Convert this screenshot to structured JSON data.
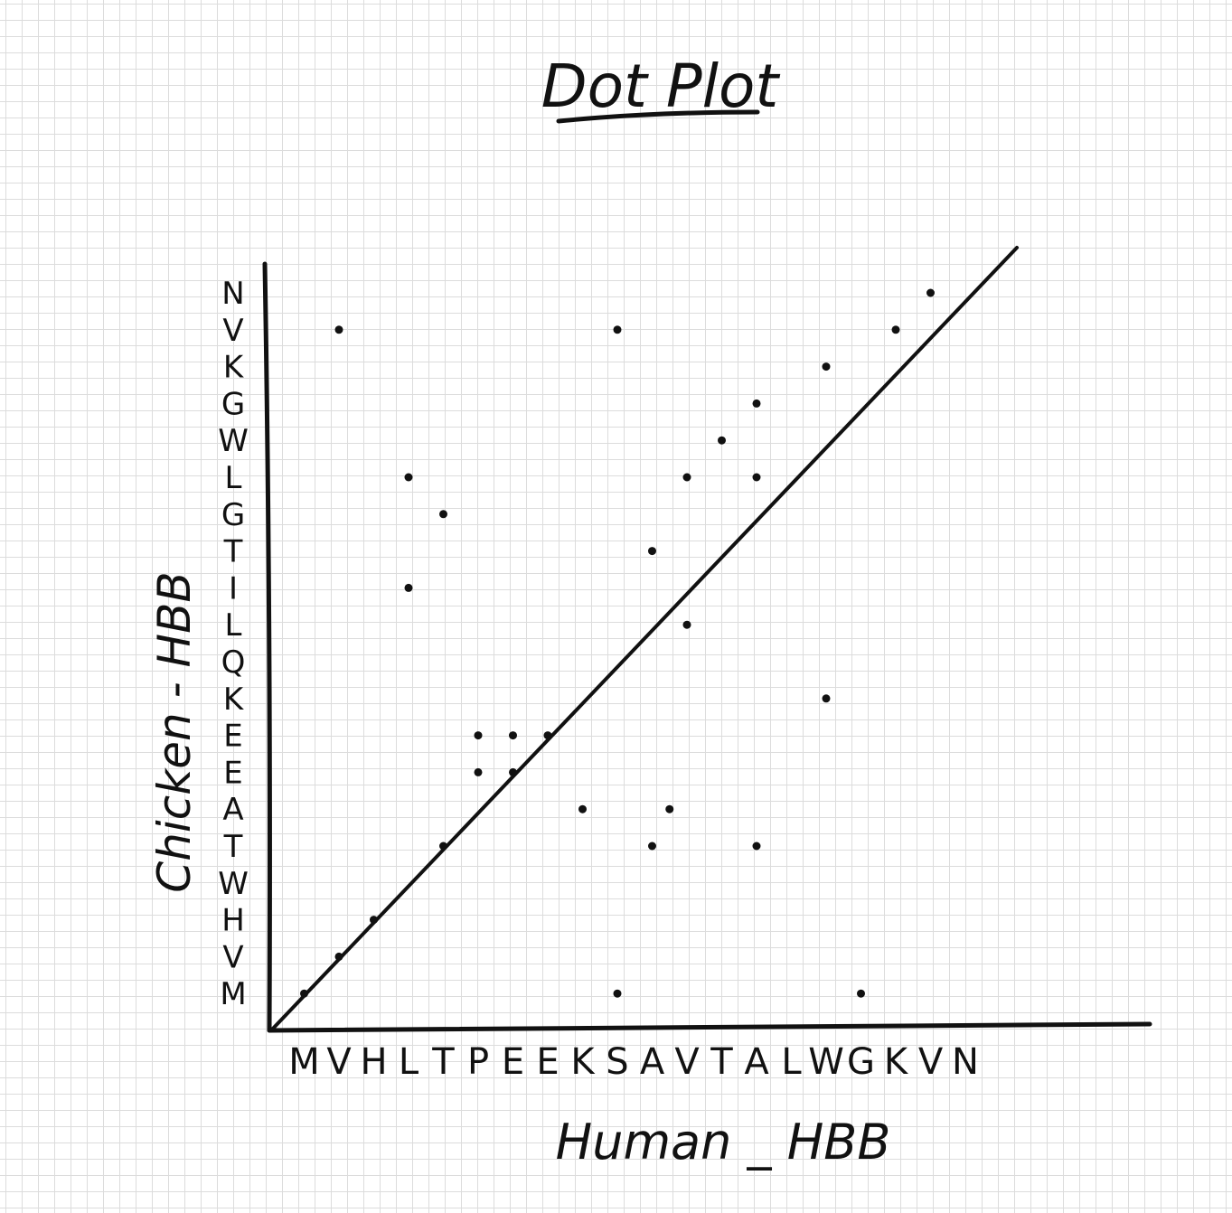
{
  "chart_data": {
    "type": "scatter",
    "title": "Dot Plot",
    "xlabel": "Human _ HBB",
    "ylabel": "Chicken - HBB",
    "x_sequence": [
      "M",
      "V",
      "H",
      "L",
      "T",
      "P",
      "E",
      "E",
      "K",
      "S",
      "A",
      "V",
      "T",
      "A",
      "L",
      "W",
      "G",
      "K",
      "V",
      "N"
    ],
    "y_sequence": [
      "M",
      "V",
      "H",
      "W",
      "T",
      "A",
      "E",
      "E",
      "K",
      "Q",
      "L",
      "I",
      "T",
      "G",
      "L",
      "W",
      "G",
      "K",
      "V",
      "N"
    ],
    "xlim": [
      0,
      21
    ],
    "ylim": [
      0,
      21
    ],
    "grid": true,
    "diagonal_line": true,
    "points": [
      {
        "x": 1,
        "y": 1
      },
      {
        "x": 2,
        "y": 2
      },
      {
        "x": 3,
        "y": 3
      },
      {
        "x": 5,
        "y": 5
      },
      {
        "x": 6,
        "y": 7
      },
      {
        "x": 6,
        "y": 8
      },
      {
        "x": 7,
        "y": 7
      },
      {
        "x": 7,
        "y": 8
      },
      {
        "x": 8,
        "y": 8
      },
      {
        "x": 9,
        "y": 6
      },
      {
        "x": 10,
        "y": 1
      },
      {
        "x": 11,
        "y": 5
      },
      {
        "x": 11,
        "y": 13
      },
      {
        "x": 11.5,
        "y": 6
      },
      {
        "x": 12,
        "y": 11
      },
      {
        "x": 12,
        "y": 15
      },
      {
        "x": 13,
        "y": 16
      },
      {
        "x": 14,
        "y": 5
      },
      {
        "x": 14,
        "y": 17
      },
      {
        "x": 14,
        "y": 15
      },
      {
        "x": 16,
        "y": 9
      },
      {
        "x": 16,
        "y": 18
      },
      {
        "x": 17,
        "y": 1
      },
      {
        "x": 18,
        "y": 19
      },
      {
        "x": 19,
        "y": 20
      },
      {
        "x": 2,
        "y": 19
      },
      {
        "x": 10,
        "y": 19
      },
      {
        "x": 4,
        "y": 15
      },
      {
        "x": 5,
        "y": 14
      },
      {
        "x": 4,
        "y": 12
      }
    ]
  }
}
